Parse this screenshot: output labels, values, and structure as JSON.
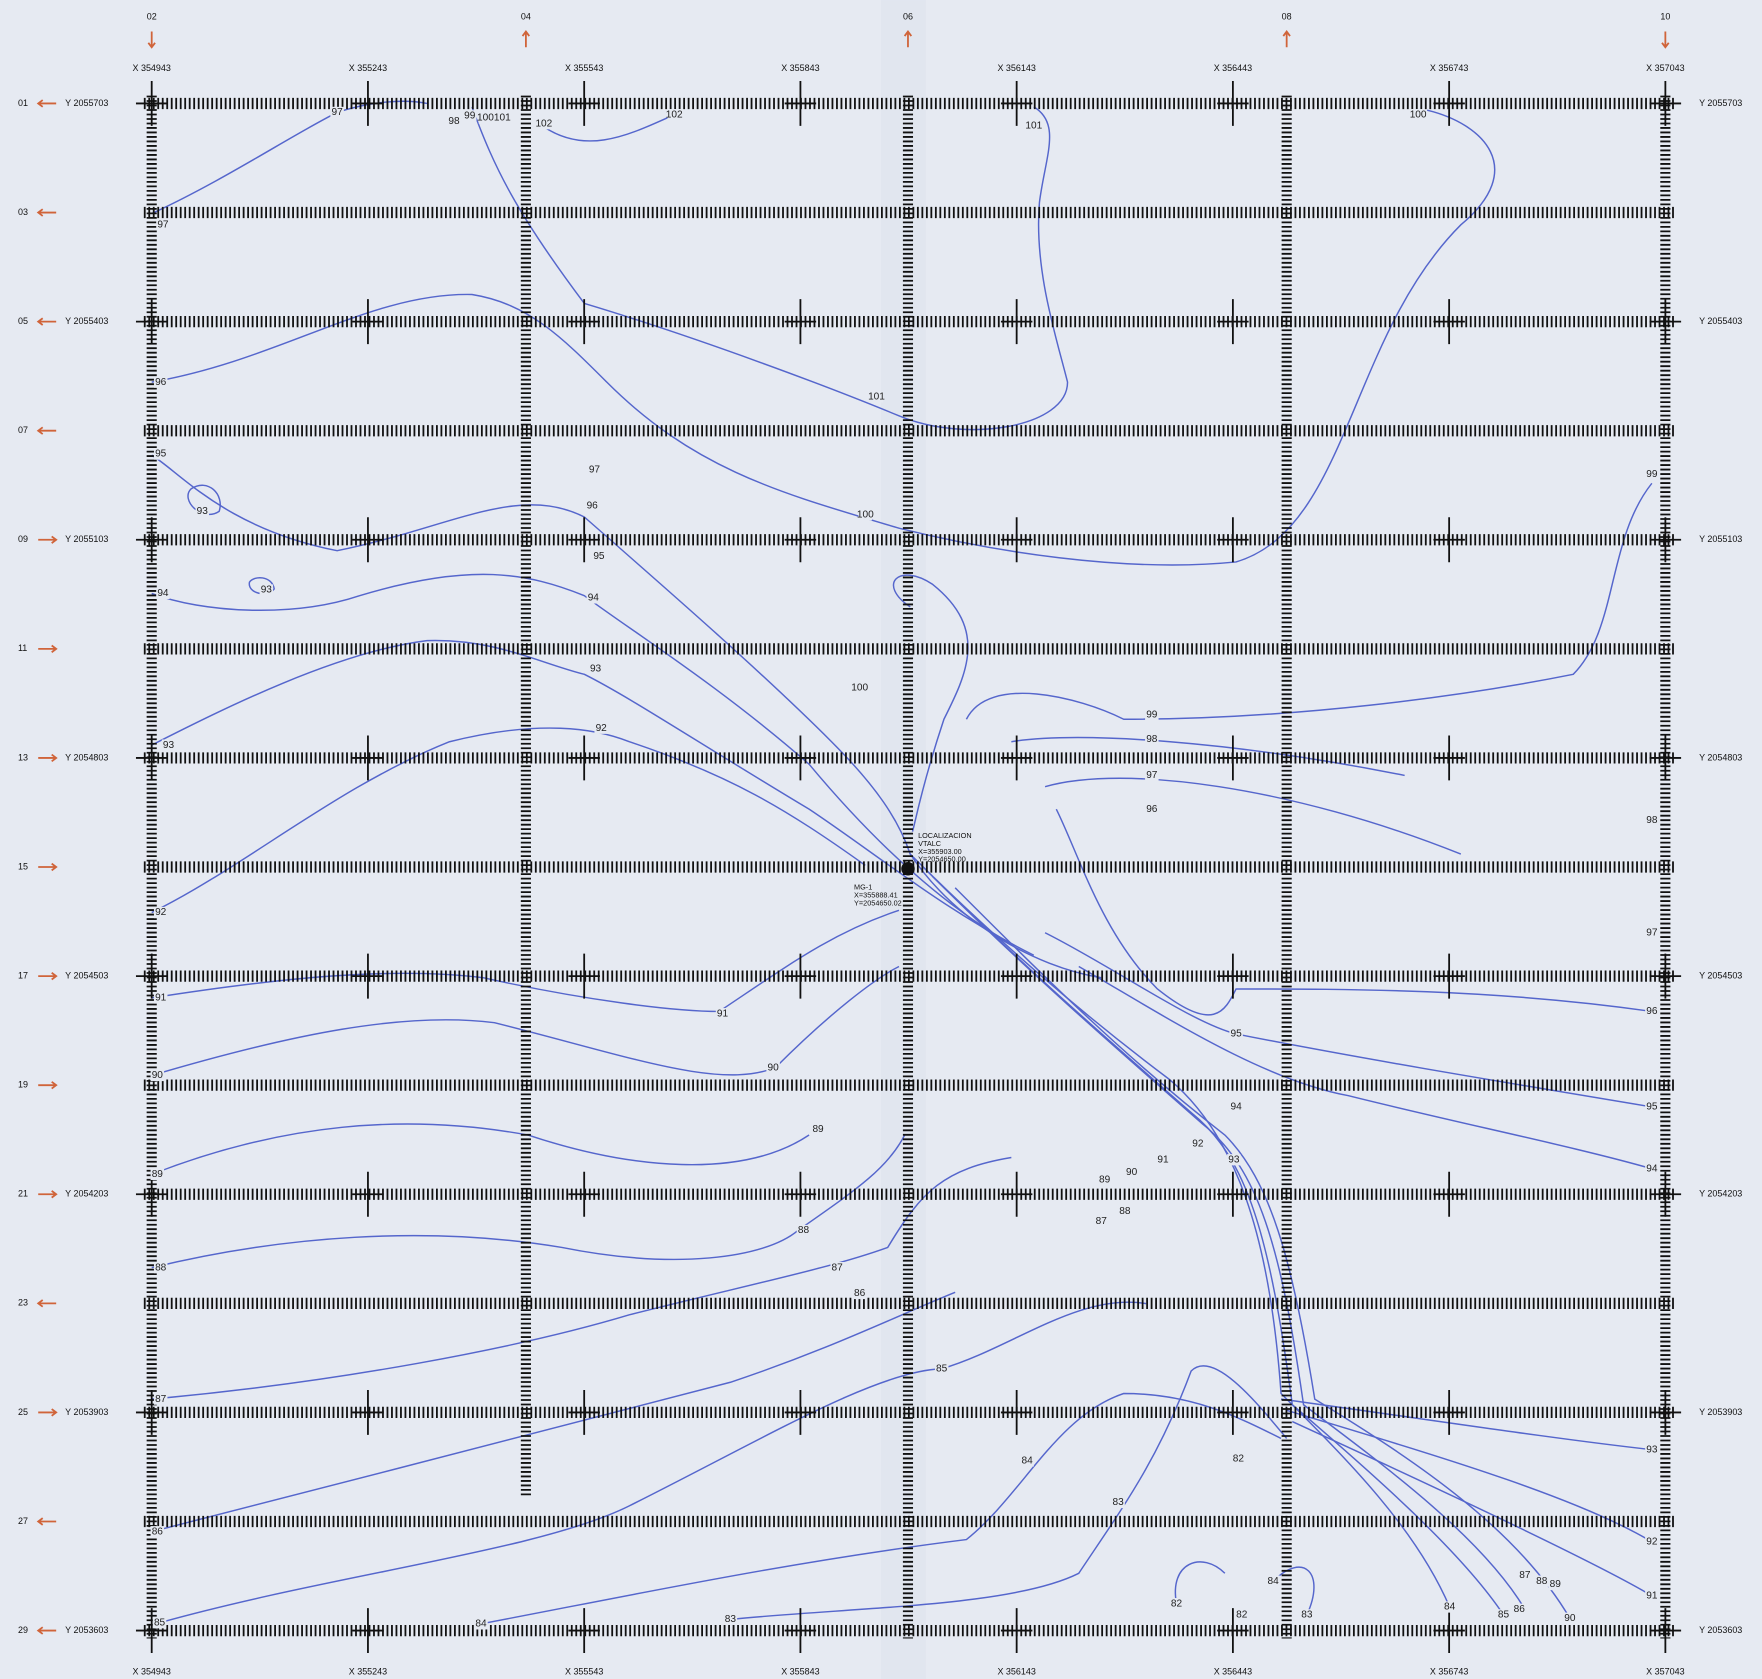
{
  "survey_lines": [
    "02",
    "04",
    "06",
    "08",
    "10"
  ],
  "x_coords": [
    "X 354943",
    "X 355243",
    "X 355543",
    "X 355843",
    "X 356143",
    "X 356443",
    "X 356743",
    "X 357043"
  ],
  "rows": [
    {
      "id": "01",
      "y": "Y 2055703"
    },
    {
      "id": "03"
    },
    {
      "id": "05",
      "y": "Y 2055403"
    },
    {
      "id": "07"
    },
    {
      "id": "09",
      "y": "Y 2055103"
    },
    {
      "id": "11"
    },
    {
      "id": "13",
      "y": "Y 2054803"
    },
    {
      "id": "15"
    },
    {
      "id": "17",
      "y": "Y 2054503"
    },
    {
      "id": "19"
    },
    {
      "id": "21",
      "y": "Y 2054203"
    },
    {
      "id": "23"
    },
    {
      "id": "25",
      "y": "Y 2053903"
    },
    {
      "id": "27"
    },
    {
      "id": "29",
      "y": "Y 2053603"
    }
  ],
  "contour_labels": [
    "97",
    "97",
    "96",
    "95",
    "93",
    "93",
    "94",
    "93",
    "92",
    "91",
    "90",
    "89",
    "88",
    "87",
    "86",
    "85",
    "84",
    "83",
    "82",
    "82",
    "84",
    "83",
    "84",
    "85",
    "86",
    "87",
    "88",
    "89",
    "90",
    "91",
    "92",
    "93",
    "94",
    "95",
    "96",
    "97",
    "98",
    "99",
    "100",
    "101",
    "101",
    "100",
    "99",
    "98",
    "102",
    "102",
    "101",
    "100",
    "100",
    "99",
    "98",
    "97",
    "96",
    "97",
    "96",
    "95",
    "94",
    "93",
    "92",
    "91",
    "90",
    "89",
    "88",
    "87",
    "86",
    "85",
    "84",
    "83",
    "82",
    "94",
    "95",
    "93",
    "92",
    "91",
    "90",
    "89",
    "88",
    "87"
  ],
  "station": {
    "name": "LOCALIZACION",
    "code": "VTALC",
    "x": "X=355903.00",
    "y": "Y=2054650.00"
  },
  "point": {
    "name": "MG-1",
    "x": "X=355888.41",
    "y": "Y=2054650.02"
  }
}
